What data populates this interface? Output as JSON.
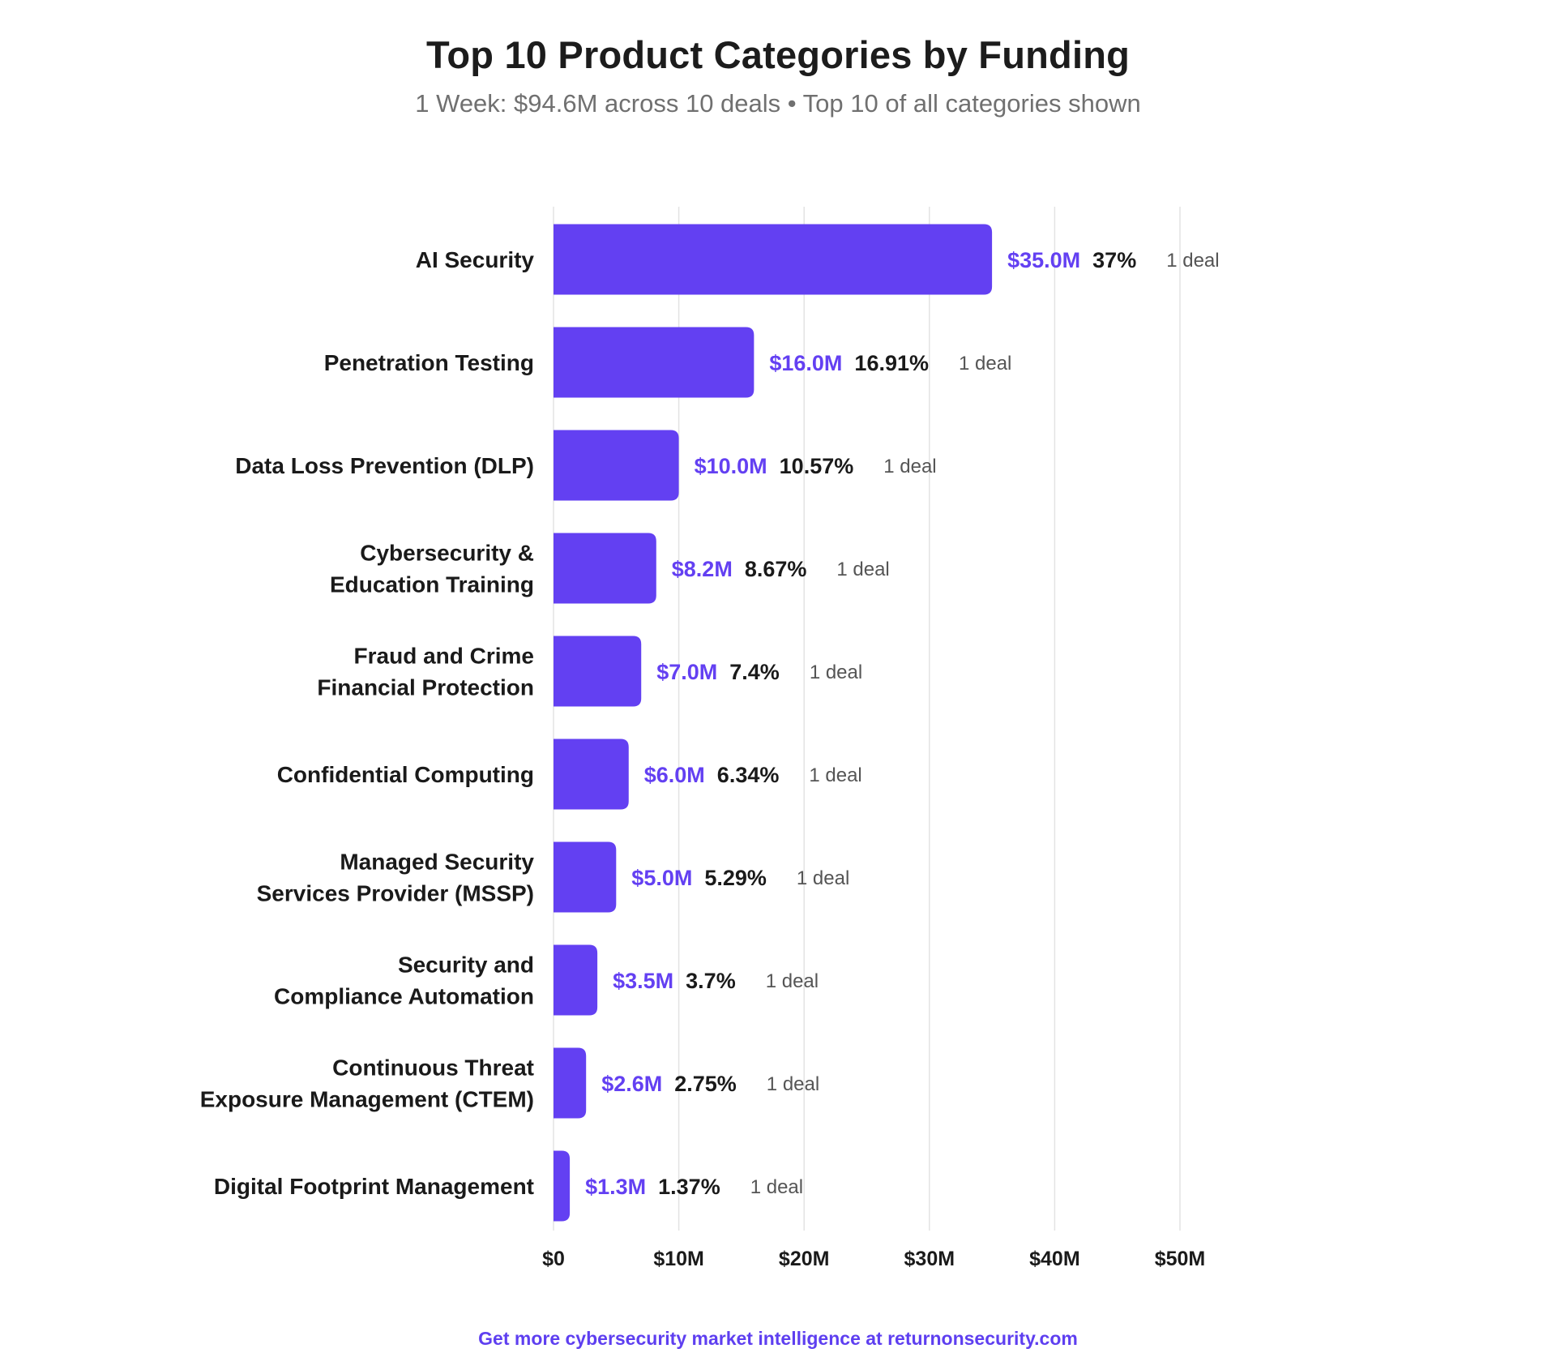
{
  "chart_data": {
    "type": "bar",
    "orientation": "horizontal",
    "title": "Top 10 Product Categories by Funding",
    "subtitle": "1 Week: $94.6M across 10 deals • Top 10 of all categories shown",
    "categories": [
      [
        "AI Security"
      ],
      [
        "Penetration Testing"
      ],
      [
        "Data Loss Prevention (DLP)"
      ],
      [
        "Cybersecurity &",
        "Education Training"
      ],
      [
        "Fraud and Crime",
        "Financial Protection"
      ],
      [
        "Confidential Computing"
      ],
      [
        "Managed Security",
        "Services Provider (MSSP)"
      ],
      [
        "Security and",
        "Compliance Automation"
      ],
      [
        "Continuous Threat",
        "Exposure Management (CTEM)"
      ],
      [
        "Digital Footprint Management"
      ]
    ],
    "values": [
      35.0,
      16.0,
      10.0,
      8.2,
      7.0,
      6.0,
      5.0,
      3.5,
      2.6,
      1.3
    ],
    "value_labels": [
      "$35.0M",
      "$16.0M",
      "$10.0M",
      "$8.2M",
      "$7.0M",
      "$6.0M",
      "$5.0M",
      "$3.5M",
      "$2.6M",
      "$1.3M"
    ],
    "percent_labels": [
      "37%",
      "16.91%",
      "10.57%",
      "8.67%",
      "7.4%",
      "6.34%",
      "5.29%",
      "3.7%",
      "2.75%",
      "1.37%"
    ],
    "deal_labels": [
      "1 deal",
      "1 deal",
      "1 deal",
      "1 deal",
      "1 deal",
      "1 deal",
      "1 deal",
      "1 deal",
      "1 deal",
      "1 deal"
    ],
    "x_ticks": [
      0,
      10,
      20,
      30,
      40,
      50
    ],
    "x_tick_labels": [
      "$0",
      "$10M",
      "$20M",
      "$30M",
      "$40M",
      "$50M"
    ],
    "xlim": [
      0,
      50
    ],
    "xlabel": "",
    "ylabel": "",
    "grid": true,
    "colors": {
      "bar": "#6340f2",
      "value_label": "#6340f2",
      "percent_label": "#1a1a1a",
      "deal_label": "#555555",
      "grid": "#e3e3e3",
      "category_label": "#1a1a1a"
    }
  },
  "footer": {
    "text": "Get more cybersecurity market intelligence at returnonsecurity.com"
  }
}
